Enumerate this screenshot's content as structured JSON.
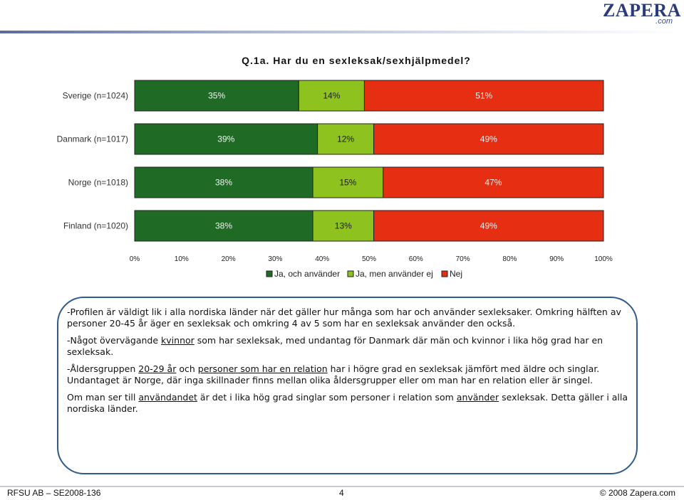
{
  "logo": {
    "main": "ZAPERA",
    "sub": ".com"
  },
  "chart_data": {
    "type": "bar",
    "orientation": "horizontal",
    "stacked": true,
    "title": "Q.1a. Har du en sexleksak/sexhjälpmedel?",
    "categories": [
      "Sverige (n=1024)",
      "Danmark (n=1017)",
      "Norge (n=1018)",
      "Finland (n=1020)"
    ],
    "series": [
      {
        "name": "Ja, och använder",
        "color": "#1f6b26",
        "values": [
          35,
          39,
          38,
          38
        ]
      },
      {
        "name": "Ja, men använder ej",
        "color": "#8ec21f",
        "values": [
          14,
          12,
          15,
          13
        ]
      },
      {
        "name": "Nej",
        "color": "#e62e12",
        "values": [
          51,
          49,
          47,
          49
        ]
      }
    ],
    "xlim": [
      0,
      100
    ],
    "x_ticks": [
      "0%",
      "10%",
      "20%",
      "30%",
      "40%",
      "50%",
      "60%",
      "70%",
      "80%",
      "90%",
      "100%"
    ],
    "value_suffix": "%",
    "legend_position": "bottom",
    "grid": false
  },
  "notes": {
    "p1": "-Profilen är väldigt lik i alla nordiska länder när det gäller hur många som har och använder sexleksaker. Omkring hälften av personer 20-45 år äger en sexleksak och omkring 4 av 5 som har en sexleksak använder den också.",
    "p2_a": "-Något övervägande ",
    "p2_u": "kvinnor",
    "p2_b": " som har sexleksak, med undantag för Danmark där män och kvinnor i lika hög grad har en sexleksak.",
    "p3_a": "-Åldersgruppen ",
    "p3_u1": "20-29 år",
    "p3_b": " och ",
    "p3_u2": "personer som har en relation",
    "p3_c": " har i högre grad en sexleksak jämfört med äldre och singlar. Undantaget är Norge, där inga skillnader finns mellan olika åldersgrupper eller om man har en relation eller är singel.",
    "p4_a": "Om man ser till ",
    "p4_u1": "användandet",
    "p4_b": " är det i lika hög grad singlar som personer i relation som ",
    "p4_u2": "använder",
    "p4_c": " sexleksak. Detta gäller i alla nordiska länder."
  },
  "footer": {
    "left": "RFSU AB – SE2008-136",
    "page": "4",
    "right": "© 2008 Zapera.com"
  }
}
